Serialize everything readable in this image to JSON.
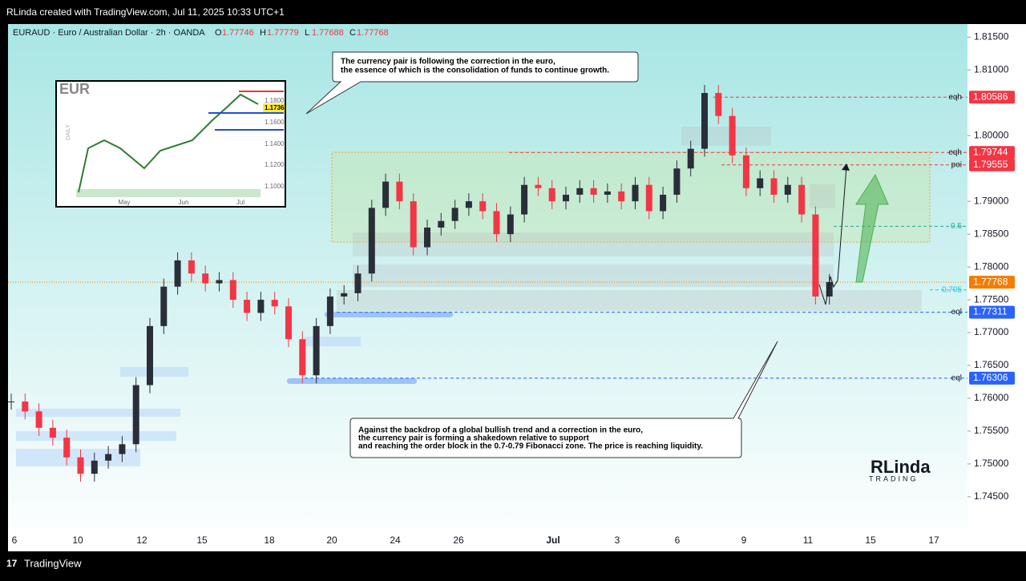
{
  "header": {
    "credit": "RLinda created with TradingView.com, Jul 11, 2025 10:33 UTC+1",
    "symbol": "EURAUD · Euro / Australian Dollar · 2h · OANDA",
    "ohlc": [
      {
        "key": "O",
        "value": 1.77746
      },
      {
        "key": "H",
        "value": 1.77779
      },
      {
        "key": "L",
        "value": 1.77688
      },
      {
        "key": "C",
        "value": 1.77768
      }
    ]
  },
  "chart_data": {
    "type": "candlestick",
    "up_color": "#2a2e39",
    "down_color": "#f23645",
    "close": [
      1.7595,
      1.758,
      1.7555,
      1.754,
      1.751,
      1.7485,
      1.7505,
      1.7515,
      1.753,
      1.762,
      1.771,
      1.777,
      1.781,
      1.779,
      1.7775,
      1.778,
      1.775,
      1.773,
      1.775,
      1.774,
      1.769,
      1.7635,
      1.771,
      1.7755,
      1.776,
      1.779,
      1.789,
      1.793,
      1.79,
      1.783,
      1.786,
      1.787,
      1.789,
      1.79,
      1.7885,
      1.785,
      1.788,
      1.7925,
      1.792,
      1.79,
      1.791,
      1.792,
      1.791,
      1.7915,
      1.79,
      1.7925,
      1.7885,
      1.791,
      1.795,
      1.798,
      1.8065,
      1.803,
      1.797,
      1.792,
      1.7935,
      1.791,
      1.7925,
      1.788,
      1.7755,
      1.7777
    ],
    "ylim": [
      1.7401,
      1.817
    ],
    "yticks": [
      {
        "value": 1.815,
        "label": "1.81500"
      },
      {
        "value": 1.81,
        "label": "1.81000"
      },
      {
        "value": 1.8,
        "label": "1.80000"
      },
      {
        "value": 1.79,
        "label": "1.79000"
      },
      {
        "value": 1.785,
        "label": "1.78500"
      },
      {
        "value": 1.78,
        "label": "1.78000"
      },
      {
        "value": 1.775,
        "label": "1.77500"
      },
      {
        "value": 1.77,
        "label": "1.77000"
      },
      {
        "value": 1.765,
        "label": "1.76500"
      },
      {
        "value": 1.76,
        "label": "1.76000"
      },
      {
        "value": 1.755,
        "label": "1.75500"
      },
      {
        "value": 1.75,
        "label": "1.75000"
      },
      {
        "value": 1.745,
        "label": "1.74500"
      }
    ],
    "xticks": [
      "6",
      "10",
      "12",
      "15",
      "18",
      "20",
      "24",
      "26",
      "Jul",
      "3",
      "6",
      "9",
      "11",
      "15",
      "17"
    ],
    "levels": [
      {
        "value": 1.80586,
        "tag": "eqh",
        "color": "#f23645",
        "badge": true
      },
      {
        "value": 1.79744,
        "tag": "eqh",
        "color": "#f23645",
        "badge": true
      },
      {
        "value": 1.79555,
        "tag": "poi",
        "color": "#f23645",
        "badge": true
      },
      {
        "value": 1.7862,
        "tag": "0.5",
        "color": "#26a69a",
        "badge": false
      },
      {
        "value": 1.7765,
        "tag": "0.705",
        "color": "#26c6da",
        "badge": false
      },
      {
        "value": 1.77768,
        "color": "#f57c00",
        "badge": true
      },
      {
        "value": 1.77311,
        "tag": "eql",
        "color": "#2962ff",
        "badge": true
      },
      {
        "value": 1.76306,
        "tag": "eql",
        "color": "#2962ff",
        "badge": true
      }
    ]
  },
  "annotations": [
    "The currency pair is following the correction in the euro,",
    "the essence of which is the consolidation of funds to continue growth.",
    "Against the backdrop of a global bullish trend and a correction in the euro,",
    "the currency pair is forming a shakedown relative to support",
    "and reaching the order block in the 0.7-0.79 Fibonacci zone. The price is reaching liquidity."
  ],
  "inset": {
    "title": "EUR",
    "side": "DAILY",
    "prices": [
      "1.1800",
      "1.1736",
      "1.1600",
      "1.1400",
      "1.1200",
      "1.1000"
    ],
    "months": [
      "May",
      "Jun",
      "Jul"
    ]
  },
  "logo": {
    "name": "RLinda",
    "sub": "TRADING"
  },
  "footer": "TradingView"
}
